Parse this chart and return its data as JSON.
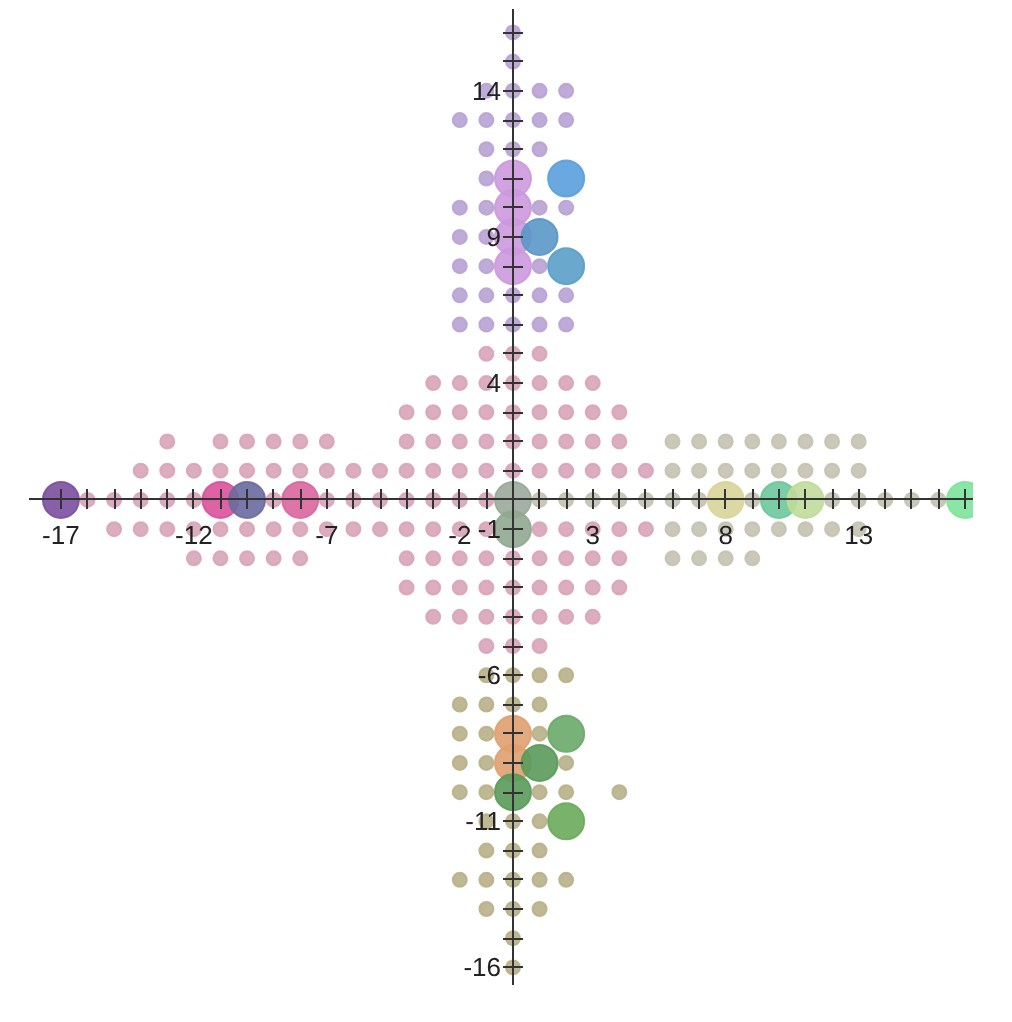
{
  "chart_data": {
    "type": "scatter",
    "xlim": [
      -18.2,
      17.3
    ],
    "ylim": [
      -16.6,
      16.8
    ],
    "grid": false,
    "marker": "circle",
    "xticks": [
      {
        "value": -17,
        "label": "-17"
      },
      {
        "value": -16,
        "label": null
      },
      {
        "value": -15,
        "label": null
      },
      {
        "value": -14,
        "label": null
      },
      {
        "value": -13,
        "label": null
      },
      {
        "value": -12,
        "label": "-12"
      },
      {
        "value": -11,
        "label": null
      },
      {
        "value": -10,
        "label": null
      },
      {
        "value": -9,
        "label": null
      },
      {
        "value": -8,
        "label": null
      },
      {
        "value": -7,
        "label": "-7"
      },
      {
        "value": -6,
        "label": null
      },
      {
        "value": -5,
        "label": null
      },
      {
        "value": -4,
        "label": null
      },
      {
        "value": -3,
        "label": null
      },
      {
        "value": -2,
        "label": "-2"
      },
      {
        "value": -1,
        "label": null
      },
      {
        "value": 1,
        "label": null
      },
      {
        "value": 2,
        "label": null
      },
      {
        "value": 3,
        "label": "3"
      },
      {
        "value": 4,
        "label": null
      },
      {
        "value": 5,
        "label": null
      },
      {
        "value": 6,
        "label": null
      },
      {
        "value": 7,
        "label": null
      },
      {
        "value": 8,
        "label": "8"
      },
      {
        "value": 9,
        "label": null
      },
      {
        "value": 10,
        "label": null
      },
      {
        "value": 11,
        "label": null
      },
      {
        "value": 12,
        "label": null
      },
      {
        "value": 13,
        "label": "13"
      },
      {
        "value": 14,
        "label": null
      },
      {
        "value": 15,
        "label": null
      },
      {
        "value": 16,
        "label": null
      },
      {
        "value": 17,
        "label": null
      }
    ],
    "yticks": [
      {
        "value": 16,
        "label": null
      },
      {
        "value": 15,
        "label": null
      },
      {
        "value": 14,
        "label": "14"
      },
      {
        "value": 13,
        "label": null
      },
      {
        "value": 12,
        "label": null
      },
      {
        "value": 11,
        "label": null
      },
      {
        "value": 10,
        "label": null
      },
      {
        "value": 9,
        "label": "9"
      },
      {
        "value": 8,
        "label": null
      },
      {
        "value": 7,
        "label": null
      },
      {
        "value": 6,
        "label": null
      },
      {
        "value": 5,
        "label": null
      },
      {
        "value": 4,
        "label": "4"
      },
      {
        "value": 3,
        "label": null
      },
      {
        "value": 2,
        "label": null
      },
      {
        "value": 1,
        "label": null
      },
      {
        "value": -1,
        "label": "-1"
      },
      {
        "value": -2,
        "label": null
      },
      {
        "value": -3,
        "label": null
      },
      {
        "value": -4,
        "label": null
      },
      {
        "value": -5,
        "label": null
      },
      {
        "value": -6,
        "label": "-6"
      },
      {
        "value": -7,
        "label": null
      },
      {
        "value": -8,
        "label": null
      },
      {
        "value": -9,
        "label": null
      },
      {
        "value": -10,
        "label": null
      },
      {
        "value": -11,
        "label": "-11"
      },
      {
        "value": -12,
        "label": null
      },
      {
        "value": -13,
        "label": null
      },
      {
        "value": -14,
        "label": null
      },
      {
        "value": -15,
        "label": null
      },
      {
        "value": -16,
        "label": "-16"
      }
    ],
    "series": [
      {
        "color": "#b8a2d4",
        "x": [
          0,
          0,
          -1,
          0,
          1,
          2,
          -2,
          -1,
          0,
          1,
          2,
          -1,
          0,
          1,
          -1,
          -2,
          -1,
          1,
          2,
          -2,
          -1,
          -2,
          -1,
          1,
          -2,
          -1,
          0,
          1,
          2,
          -2,
          -1,
          0,
          1,
          2
        ],
        "values": [
          16,
          15,
          14,
          14,
          14,
          14,
          13,
          13,
          13,
          13,
          13,
          12,
          12,
          12,
          11,
          10,
          10,
          10,
          10,
          9,
          9,
          8,
          8,
          8,
          7,
          7,
          7,
          7,
          7,
          6,
          6,
          6,
          6,
          6
        ]
      },
      {
        "color": "#d8a4b8",
        "x": [
          -1,
          0,
          1,
          -3,
          -2,
          -1,
          0,
          1,
          2,
          3,
          -4,
          -3,
          -2,
          -1,
          0,
          1,
          2,
          3,
          4,
          -13,
          -11,
          -10,
          -9,
          -8,
          -7,
          -4,
          -3,
          -2,
          -1,
          0,
          1,
          2,
          3,
          4,
          -14,
          -13,
          -12,
          -11,
          -10,
          -9,
          -8,
          -7,
          -6,
          -5,
          -4,
          -3,
          -2,
          -1,
          0,
          1,
          2,
          3,
          4,
          5,
          -16,
          -15,
          -14,
          -13,
          -12,
          -9,
          -7,
          -6,
          -5,
          -4,
          -3,
          -2,
          -1,
          -15,
          -14,
          -13,
          -12,
          -11,
          -10,
          -9,
          -8,
          -7,
          -6,
          -5,
          -4,
          -3,
          -2,
          -1,
          1,
          2,
          3,
          4,
          5,
          -12,
          -11,
          -10,
          -9,
          -8,
          -4,
          -3,
          -2,
          -1,
          0,
          1,
          2,
          3,
          4,
          -4,
          -3,
          -2,
          -1,
          0,
          1,
          2,
          3,
          4,
          -3,
          -2,
          -1,
          0,
          1,
          2,
          3,
          -1,
          0,
          1
        ],
        "values": [
          5,
          5,
          5,
          4,
          4,
          4,
          4,
          4,
          4,
          4,
          3,
          3,
          3,
          3,
          3,
          3,
          3,
          3,
          3,
          2,
          2,
          2,
          2,
          2,
          2,
          2,
          2,
          2,
          2,
          2,
          2,
          2,
          2,
          2,
          1,
          1,
          1,
          1,
          1,
          1,
          1,
          1,
          1,
          1,
          1,
          1,
          1,
          1,
          1,
          1,
          1,
          1,
          1,
          1,
          0,
          0,
          0,
          0,
          0,
          0,
          0,
          0,
          0,
          0,
          0,
          0,
          0,
          -1,
          -1,
          -1,
          -1,
          -1,
          -1,
          -1,
          -1,
          -1,
          -1,
          -1,
          -1,
          -1,
          -1,
          -1,
          -1,
          -1,
          -1,
          -1,
          -1,
          -2,
          -2,
          -2,
          -2,
          -2,
          -2,
          -2,
          -2,
          -2,
          -2,
          -2,
          -2,
          -2,
          -2,
          -3,
          -3,
          -3,
          -3,
          -3,
          -3,
          -3,
          -3,
          -3,
          -4,
          -4,
          -4,
          -4,
          -4,
          -4,
          -4,
          -5,
          -5,
          -5
        ]
      },
      {
        "color": "#c4c2b0",
        "x": [
          6,
          7,
          8,
          9,
          10,
          11,
          12,
          13,
          6,
          7,
          8,
          9,
          10,
          11,
          12,
          13,
          1,
          2,
          3,
          4,
          5,
          6,
          7,
          9,
          12,
          13,
          14,
          15,
          16,
          6,
          7,
          8,
          9,
          10,
          11,
          12,
          13,
          6,
          7,
          8,
          9
        ],
        "values": [
          2,
          2,
          2,
          2,
          2,
          2,
          2,
          2,
          1,
          1,
          1,
          1,
          1,
          1,
          1,
          1,
          0,
          0,
          0,
          0,
          0,
          0,
          0,
          0,
          0,
          0,
          0,
          0,
          0,
          -1,
          -1,
          -1,
          -1,
          -1,
          -1,
          -1,
          -1,
          -2,
          -2,
          -2,
          -2
        ]
      },
      {
        "color": "#b8b088",
        "x": [
          -1,
          0,
          1,
          2,
          -2,
          -1,
          0,
          1,
          -2,
          -1,
          1,
          -2,
          -1,
          2,
          -2,
          -1,
          1,
          2,
          4,
          -1,
          0,
          1,
          -1,
          0,
          1,
          -2,
          -1,
          0,
          1,
          2,
          -1,
          0,
          1,
          0,
          0
        ],
        "values": [
          -6,
          -6,
          -6,
          -6,
          -7,
          -7,
          -7,
          -7,
          -8,
          -8,
          -8,
          -9,
          -9,
          -9,
          -10,
          -10,
          -10,
          -10,
          -10,
          -11,
          -11,
          -11,
          -12,
          -12,
          -12,
          -13,
          -13,
          -13,
          -13,
          -13,
          -14,
          -14,
          -14,
          -15,
          -16
        ]
      },
      {
        "type": "bubble",
        "x": [
          -17,
          -11,
          -10,
          -8,
          0,
          0,
          8,
          10,
          11,
          17,
          0,
          0,
          0,
          0,
          2,
          1,
          2,
          0,
          0,
          2,
          1,
          0,
          2
        ],
        "values": [
          0,
          0,
          0,
          0,
          0,
          -1,
          0,
          0,
          0,
          0,
          11,
          10,
          9,
          8,
          11,
          9,
          8,
          -8,
          -9,
          -8,
          -9,
          -10,
          -11
        ],
        "sizes": [
          1,
          1,
          1,
          1,
          1,
          1,
          1,
          1,
          1,
          1,
          1,
          1,
          1,
          1,
          1,
          1,
          1,
          1,
          1,
          1,
          1,
          1,
          1
        ],
        "colors": [
          "#7a4fa0",
          "#d9529a",
          "#6a6aa0",
          "#d966a0",
          "#9aa89a",
          "#90a890",
          "#d8d49a",
          "#6cc89a",
          "#c0dc9a",
          "#7de39a",
          "#cc99dd",
          "#cc99dd",
          "#cc99dd",
          "#cc99dd",
          "#5aa0dc",
          "#5a98c8",
          "#5aa0c8",
          "#e0a070",
          "#e0a070",
          "#6aaa6a",
          "#5a9a5a",
          "#5a9a5a",
          "#6aaa5a"
        ]
      }
    ]
  }
}
